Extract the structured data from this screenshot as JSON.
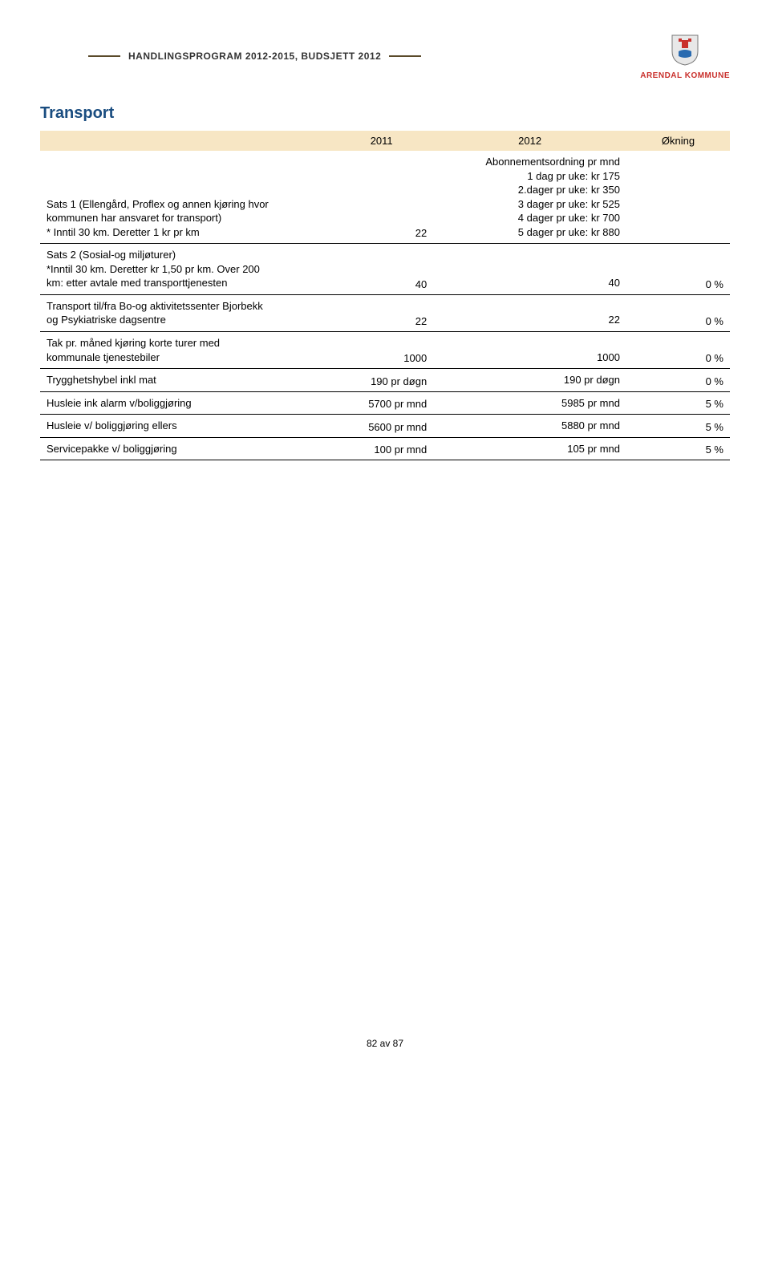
{
  "header": {
    "title": "HANDLINGSPROGRAM 2012-2015, BUDSJETT 2012",
    "logo_text": "ARENDAL KOMMUNE"
  },
  "section_title": "Transport",
  "table": {
    "header_bg": "#f7e6c4",
    "border_color": "#000000",
    "columns": [
      "",
      "2011",
      "2012",
      "Økning"
    ],
    "rows": [
      {
        "label_lines": [
          "Sats 1 (Ellengård, Proflex og annen kjøring hvor",
          "kommunen har ansvaret for transport)",
          "* Inntil 30 km. Deretter 1 kr pr km"
        ],
        "c2011": "22",
        "c2012_lines": [
          "Abonnementsordning pr mnd",
          "1 dag pr uke: kr 175",
          "2.dager pr uke: kr 350",
          "3 dager pr uke: kr 525",
          "4 dager pr uke: kr 700",
          "5 dager pr uke: kr 880"
        ],
        "inc": ""
      },
      {
        "label_lines": [
          "Sats 2 (Sosial-og miljøturer)",
          "*Inntil 30 km. Deretter kr 1,50 pr km. Over 200",
          "km: etter avtale med transporttjenesten"
        ],
        "c2011": "40",
        "c2012": "40",
        "inc": "0 %"
      },
      {
        "label_lines": [
          "Transport til/fra Bo-og aktivitetssenter Bjorbekk",
          "og Psykiatriske dagsentre"
        ],
        "c2011": "22",
        "c2012": "22",
        "inc": "0 %"
      },
      {
        "label_lines": [
          "Tak pr. måned kjøring korte turer med",
          "kommunale tjenestebiler"
        ],
        "c2011": "1000",
        "c2012": "1000",
        "inc": "0 %"
      },
      {
        "label_lines": [
          "Trygghetshybel inkl mat"
        ],
        "c2011": "190 pr døgn",
        "c2012": "190 pr døgn",
        "inc": "0 %"
      },
      {
        "label_lines": [
          "Husleie ink alarm v/boliggjøring"
        ],
        "c2011": "5700 pr mnd",
        "c2012": "5985 pr mnd",
        "inc": "5 %"
      },
      {
        "label_lines": [
          "Husleie v/ boliggjøring ellers"
        ],
        "c2011": "5600 pr mnd",
        "c2012": "5880 pr mnd",
        "inc": "5 %"
      },
      {
        "label_lines": [
          "Servicepakke v/ boliggjøring"
        ],
        "c2011": "100 pr mnd",
        "c2012": "105 pr mnd",
        "inc": "5 %"
      }
    ]
  },
  "footer": "82 av 87"
}
